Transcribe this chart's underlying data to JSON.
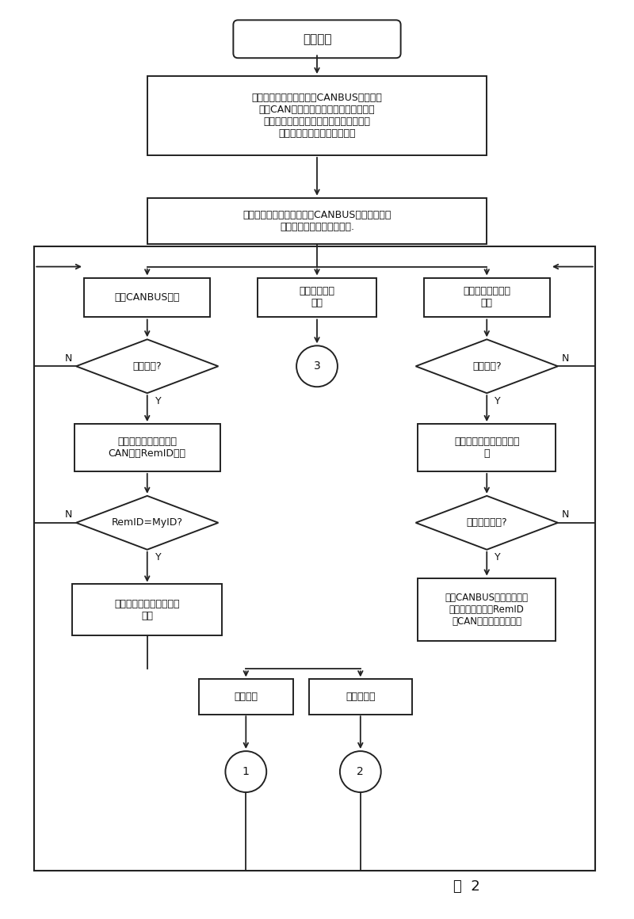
{
  "bg_color": "#ffffff",
  "line_color": "#222222",
  "text_color": "#111111",
  "fig_width": 8.0,
  "fig_height": 11.6,
  "caption": "图  2",
  "nodes": {
    "start_text": "系统启动",
    "init_text": "系统初始化，初始化状态CANBUS口，加载\n状态CAN设备驱动程序；打开参数设定文\n件，获取行车线路编号、车辆编号、司机\n工号、车辆局域网络设备编号",
    "main_text": "应用系统服务主进程启动，CANBUS信息采集、发\n布与控制子线程子线程启动.",
    "listen_can_text": "监听CANBUS端口",
    "publish_text": "站点消息发布\n模式",
    "listen_wl_text": "监听无线网络通信\n端口",
    "diamond_can_text": "有数据包?",
    "circle3_text": "3",
    "diamond_wl_text": "有数据包?",
    "parse_can_text": "解析数据包，提取目标\nCAN设备RemID编号",
    "parse_wl_text": "解析数据包，提取消息类\n型",
    "diamond_remid_text": "RemID=MyID?",
    "diamond_disp_text": "是显示类消息?",
    "parse_frame_text": "解析数据报文，判别报文\n类型",
    "send_can_text": "封装CANBUS通信协议数包\n报文，发送到对应RemID\n的CAN局域网络显示设备",
    "video_text": "视频文件",
    "sensor_text": "传感器数据",
    "circle1_text": "1",
    "circle2_text": "2",
    "label_N": "N",
    "label_Y": "Y"
  }
}
